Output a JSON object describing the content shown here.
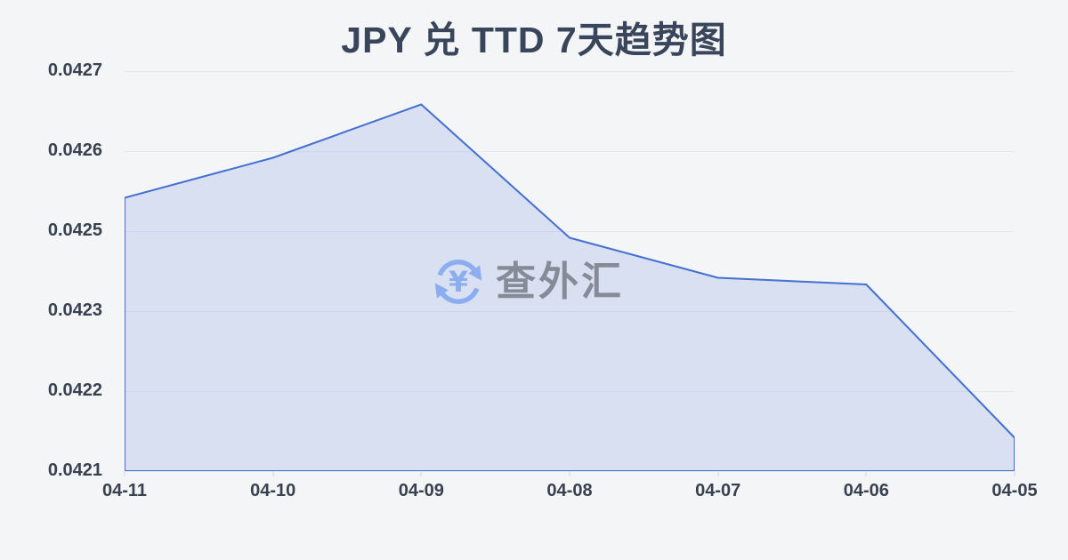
{
  "header": {
    "title": "JPY 兑 TTD 7天趋势图"
  },
  "watermark": {
    "brand": "查外汇",
    "symbol": "¥"
  },
  "chart_data": {
    "type": "area",
    "title": "JPY 兑 TTD 7天趋势图",
    "series_name": "JPY 兑 TTD",
    "categories": [
      "04-11",
      "04-10",
      "04-09",
      "04-08",
      "04-07",
      "04-06",
      "04-05"
    ],
    "values": [
      0.04251,
      0.04257,
      0.04265,
      0.04245,
      0.04239,
      0.04238,
      0.04215
    ],
    "ylim": [
      0.0421,
      0.0427
    ],
    "y_tick_labels": [
      "0.0427",
      "0.0426",
      "0.0425",
      "0.0423",
      "0.0422",
      "0.0421"
    ],
    "grid": "horizontal",
    "legend": "none",
    "colors": {
      "line": "#4470d2",
      "fill": "rgba(77,118,214,0.16)",
      "grid": "#e6e8ed",
      "axis_text": "#39414f",
      "title_text": "#39455a",
      "watermark_blue": "#8cadf0",
      "watermark_gray": "#858c97",
      "background": "#f4f5f7"
    }
  }
}
